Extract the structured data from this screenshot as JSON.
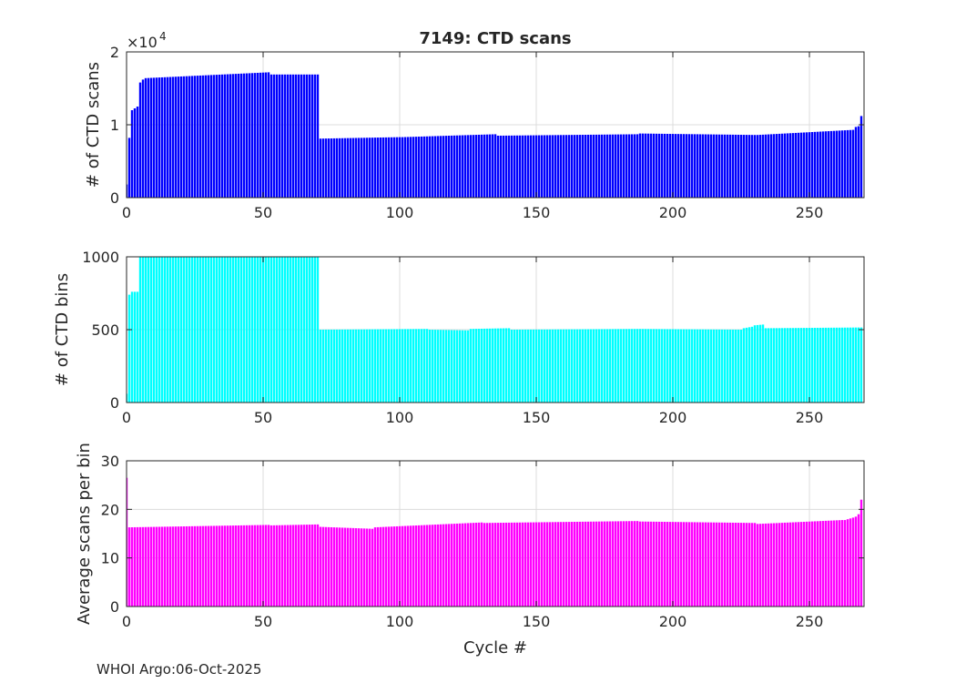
{
  "footer": "WHOI Argo:06-Oct-2025",
  "chart_data": [
    {
      "type": "bar",
      "title": "7149: CTD scans",
      "ylabel": "# of CTD scans",
      "xlabel": "",
      "exponent_label": "×10",
      "exponent_power": "4",
      "xlim": [
        0,
        270
      ],
      "ylim": [
        0,
        20000
      ],
      "xticks": [
        0,
        50,
        100,
        150,
        200,
        250
      ],
      "yticks": [
        0,
        10000,
        20000
      ],
      "ytick_labels": [
        "0",
        "1",
        "2"
      ],
      "color": "#0000ff",
      "grid": true,
      "note": "Approximate per-cycle values read from the plot (cycles 0–270).",
      "segments": [
        {
          "from": 0,
          "to": 0,
          "start": 1800,
          "end": 1800
        },
        {
          "from": 1,
          "to": 1,
          "start": 8200,
          "end": 8200
        },
        {
          "from": 2,
          "to": 4,
          "start": 12000,
          "end": 12500
        },
        {
          "from": 5,
          "to": 6,
          "start": 15800,
          "end": 16200
        },
        {
          "from": 7,
          "to": 52,
          "start": 16400,
          "end": 17200
        },
        {
          "from": 53,
          "to": 70,
          "start": 16900,
          "end": 16900
        },
        {
          "from": 71,
          "to": 100,
          "start": 8100,
          "end": 8300
        },
        {
          "from": 101,
          "to": 135,
          "start": 8300,
          "end": 8700
        },
        {
          "from": 136,
          "to": 187,
          "start": 8500,
          "end": 8700
        },
        {
          "from": 188,
          "to": 230,
          "start": 8800,
          "end": 8600
        },
        {
          "from": 231,
          "to": 266,
          "start": 8600,
          "end": 9300
        },
        {
          "from": 267,
          "to": 268,
          "start": 9700,
          "end": 9800
        },
        {
          "from": 269,
          "to": 269,
          "start": 11200,
          "end": 11200
        }
      ]
    },
    {
      "type": "bar",
      "title": "",
      "ylabel": "# of CTD bins",
      "xlabel": "",
      "xlim": [
        0,
        270
      ],
      "ylim": [
        0,
        1000
      ],
      "xticks": [
        0,
        50,
        100,
        150,
        200,
        250
      ],
      "yticks": [
        0,
        500,
        1000
      ],
      "ytick_labels": [
        "0",
        "500",
        "1000"
      ],
      "color": "#00ffff",
      "grid": true,
      "note": "Approximate per-cycle values read from the plot (cycles 0–270).",
      "segments": [
        {
          "from": 0,
          "to": 0,
          "start": 60,
          "end": 60
        },
        {
          "from": 1,
          "to": 1,
          "start": 740,
          "end": 740
        },
        {
          "from": 2,
          "to": 4,
          "start": 760,
          "end": 760
        },
        {
          "from": 5,
          "to": 70,
          "start": 1000,
          "end": 1000
        },
        {
          "from": 71,
          "to": 110,
          "start": 500,
          "end": 505
        },
        {
          "from": 111,
          "to": 125,
          "start": 500,
          "end": 495
        },
        {
          "from": 126,
          "to": 140,
          "start": 505,
          "end": 510
        },
        {
          "from": 141,
          "to": 187,
          "start": 500,
          "end": 505
        },
        {
          "from": 188,
          "to": 225,
          "start": 505,
          "end": 500
        },
        {
          "from": 226,
          "to": 229,
          "start": 510,
          "end": 520
        },
        {
          "from": 230,
          "to": 233,
          "start": 530,
          "end": 535
        },
        {
          "from": 234,
          "to": 269,
          "start": 510,
          "end": 515
        }
      ]
    },
    {
      "type": "bar",
      "title": "",
      "ylabel": "Average scans per bin",
      "xlabel": "Cycle #",
      "xlim": [
        0,
        270
      ],
      "ylim": [
        0,
        30
      ],
      "xticks": [
        0,
        50,
        100,
        150,
        200,
        250
      ],
      "yticks": [
        0,
        10,
        20,
        30
      ],
      "ytick_labels": [
        "0",
        "10",
        "20",
        "30"
      ],
      "color": "#ff00ff",
      "grid": true,
      "note": "Approximate per-cycle values read from the plot (cycles 0–270).",
      "segments": [
        {
          "from": 0,
          "to": 0,
          "start": 26.5,
          "end": 26.5
        },
        {
          "from": 1,
          "to": 52,
          "start": 16.3,
          "end": 16.8
        },
        {
          "from": 53,
          "to": 70,
          "start": 16.7,
          "end": 16.9
        },
        {
          "from": 71,
          "to": 90,
          "start": 16.4,
          "end": 16.0
        },
        {
          "from": 91,
          "to": 130,
          "start": 16.3,
          "end": 17.3
        },
        {
          "from": 131,
          "to": 187,
          "start": 17.2,
          "end": 17.6
        },
        {
          "from": 188,
          "to": 230,
          "start": 17.5,
          "end": 17.2
        },
        {
          "from": 231,
          "to": 262,
          "start": 17.0,
          "end": 17.8
        },
        {
          "from": 263,
          "to": 266,
          "start": 17.8,
          "end": 18.3
        },
        {
          "from": 267,
          "to": 268,
          "start": 18.5,
          "end": 19.0
        },
        {
          "from": 269,
          "to": 269,
          "start": 22.0,
          "end": 22.0
        }
      ]
    }
  ]
}
